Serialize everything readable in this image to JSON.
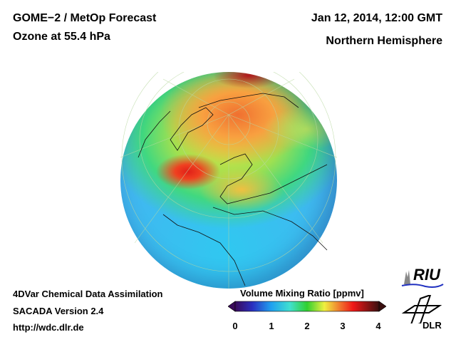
{
  "header": {
    "title_line1": "GOME−2 / MetOp Forecast",
    "title_line2": "Ozone at 55.4 hPa",
    "date": "Jan 12, 2014, 12:00 GMT",
    "region": "Northern Hemisphere"
  },
  "footer": {
    "line1": "4DVar Chemical Data Assimilation",
    "line2": "SACADA Version 2.4",
    "url": "http://wdc.dlr.de"
  },
  "colorbar": {
    "title": "Volume Mixing Ratio [ppmv]",
    "ticks": [
      "0",
      "1",
      "2",
      "3",
      "4"
    ],
    "range": [
      0,
      4
    ],
    "colors": [
      "#3a0a5a",
      "#2040e0",
      "#20a0f0",
      "#40e0e0",
      "#30d030",
      "#f0f040",
      "#f08030",
      "#f01818",
      "#3a1010"
    ]
  },
  "logos": {
    "riu": "RIU",
    "dlr": "DLR"
  }
}
